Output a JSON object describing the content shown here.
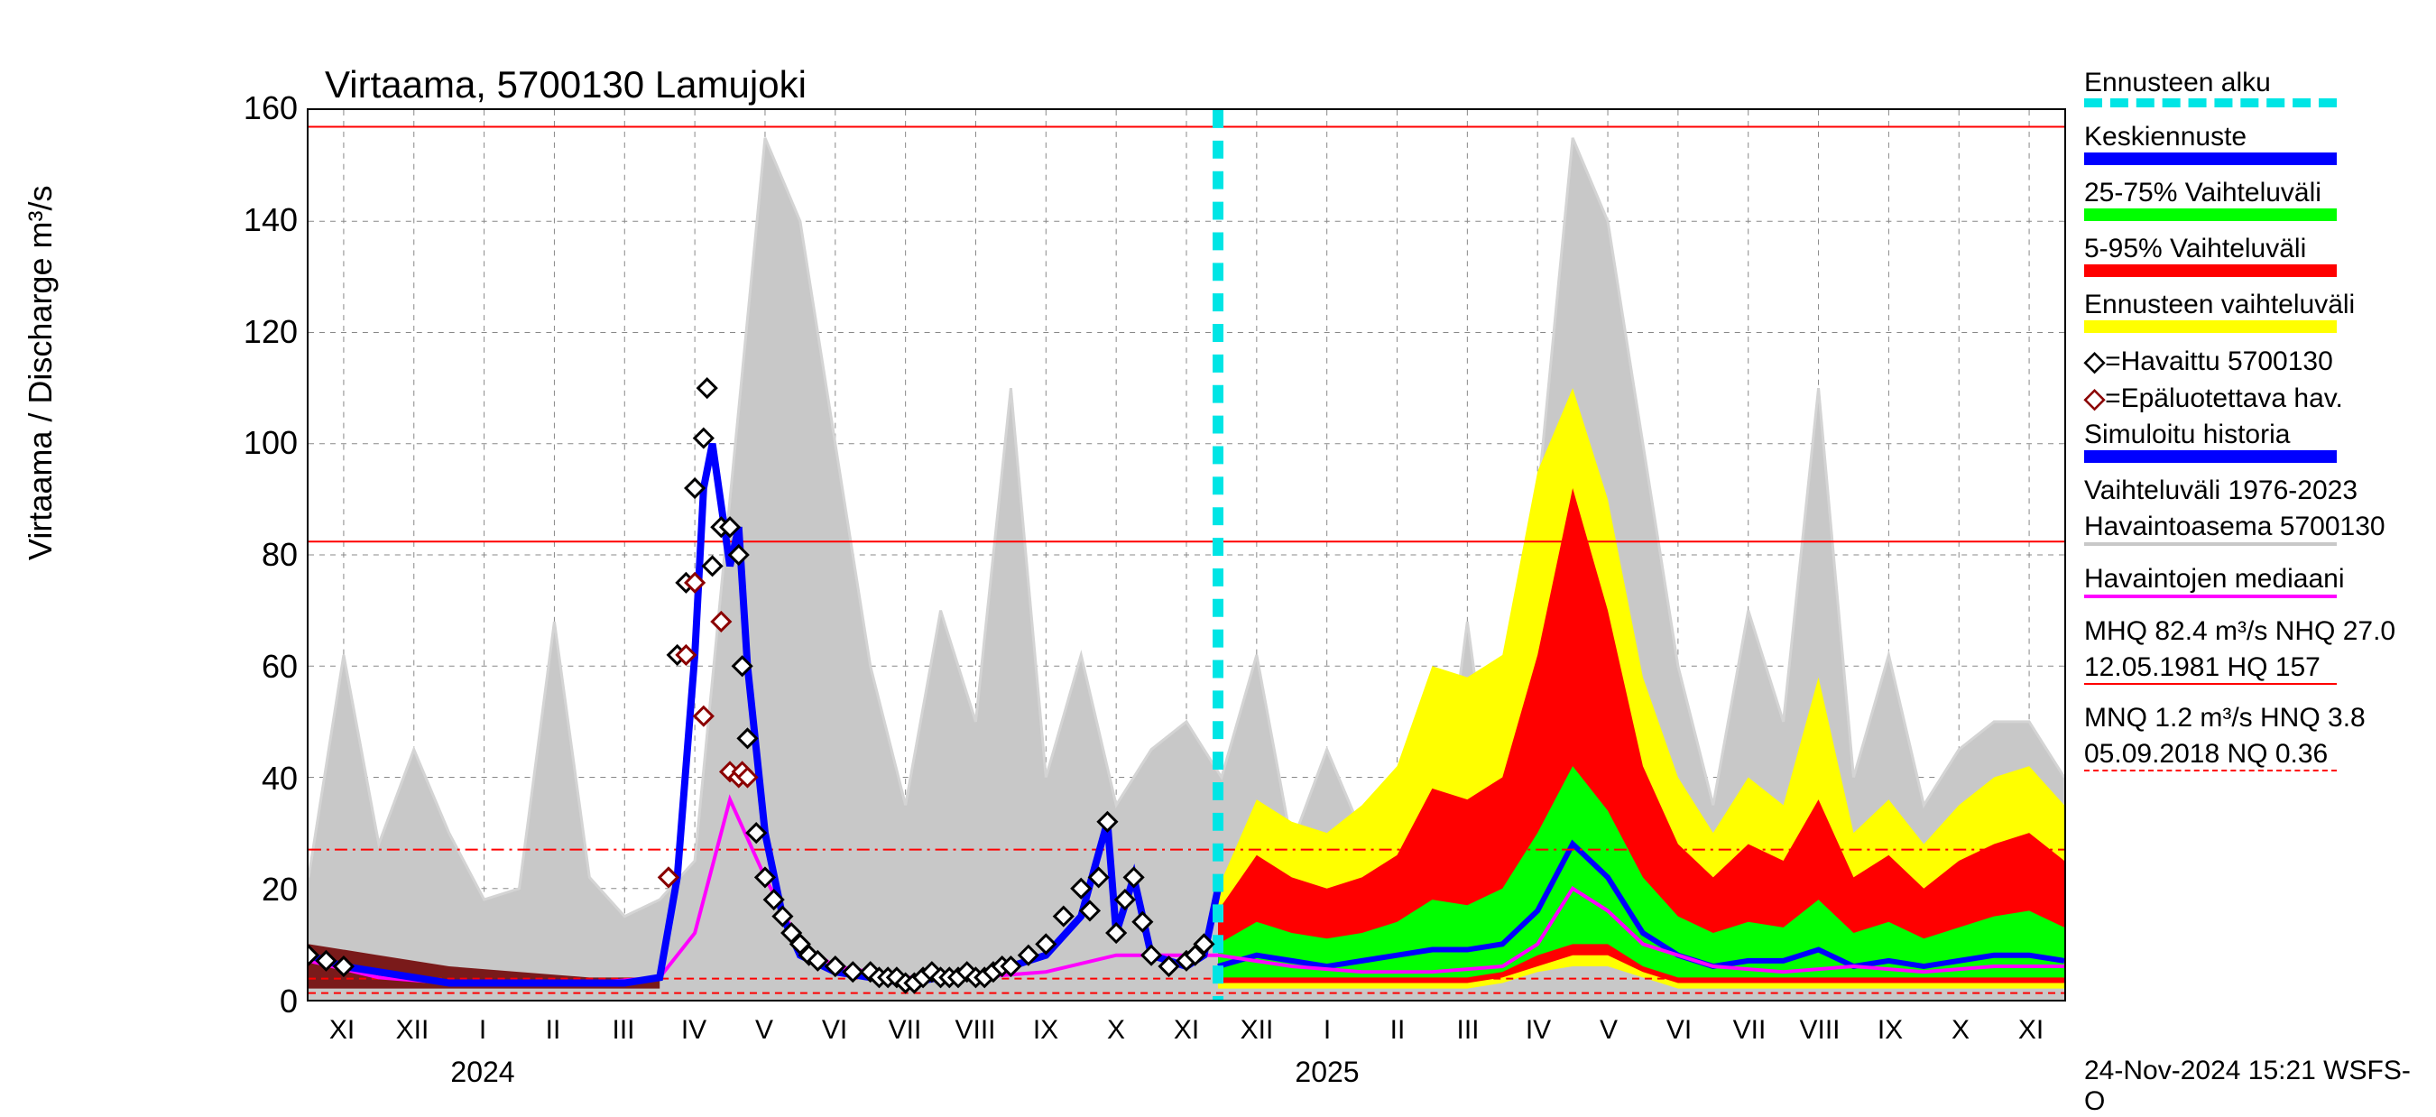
{
  "title": "Virtaama, 5700130 Lamujoki",
  "y_axis_label": "Virtaama / Discharge   m³/s",
  "footer": "24-Nov-2024 15:21 WSFS-O",
  "y_axis": {
    "min": 0,
    "max": 160,
    "ticks": [
      0,
      20,
      40,
      60,
      80,
      100,
      120,
      140,
      160
    ],
    "fontsize": 36
  },
  "x_axis": {
    "months": [
      "XI",
      "XII",
      "I",
      "II",
      "III",
      "IV",
      "V",
      "VI",
      "VII",
      "VIII",
      "IX",
      "X",
      "XI",
      "XII",
      "I",
      "II",
      "III",
      "IV",
      "V",
      "VI",
      "VII",
      "VIII",
      "IX",
      "X",
      "XI"
    ],
    "month_positions": [
      0.02,
      0.06,
      0.1,
      0.14,
      0.18,
      0.22,
      0.26,
      0.3,
      0.34,
      0.38,
      0.42,
      0.46,
      0.5,
      0.54,
      0.58,
      0.62,
      0.66,
      0.7,
      0.74,
      0.78,
      0.82,
      0.86,
      0.9,
      0.94,
      0.98
    ],
    "years": [
      "2024",
      "2025"
    ],
    "year_positions": [
      0.1,
      0.58
    ],
    "fontsize": 30
  },
  "colors": {
    "background": "#ffffff",
    "grid": "#888888",
    "axis": "#000000",
    "historical_range": "#c8c8c8",
    "yellow_band": "#ffff00",
    "red_band": "#ff0000",
    "green_band": "#00ff00",
    "blue_line": "#0000ff",
    "magenta_line": "#ff00ff",
    "cyan_dash": "#00e5e5",
    "obs_marker_fill": "#ffffff",
    "obs_marker_stroke": "#000000",
    "unrel_marker_stroke": "#8b0000",
    "ref_red": "#ff0000",
    "darkred_fill": "#7a1a1a"
  },
  "reference_lines": {
    "hq": {
      "value": 157,
      "style": "solid",
      "color": "#ff0000"
    },
    "mhq": {
      "value": 82.4,
      "style": "solid",
      "color": "#ff0000"
    },
    "nhq": {
      "value": 27.0,
      "style": "dashdot",
      "color": "#ff0000"
    },
    "hnq": {
      "value": 3.8,
      "style": "dashed",
      "color": "#ff0000"
    },
    "mnq": {
      "value": 1.2,
      "style": "dashed",
      "color": "#ff0000"
    }
  },
  "forecast_start_x": 0.518,
  "legend": {
    "items": [
      {
        "label": "Ennusteen alku",
        "type": "dashed",
        "color": "#00e5e5"
      },
      {
        "label": "Keskiennuste",
        "type": "bar",
        "color": "#0000ff"
      },
      {
        "label": "25-75% Vaihteluväli",
        "type": "bar",
        "color": "#00ff00"
      },
      {
        "label": "5-95% Vaihteluväli",
        "type": "bar",
        "color": "#ff0000"
      },
      {
        "label": "Ennusteen vaihteluväli",
        "type": "bar",
        "color": "#ffff00"
      },
      {
        "label": "◇=Havaittu 5700130",
        "type": "text",
        "marker_stroke": "#000000"
      },
      {
        "label": "◇=Epäluotettava hav.",
        "type": "text",
        "marker_stroke": "#8b0000"
      },
      {
        "label": "Simuloitu historia",
        "type": "bar",
        "color": "#0000ff"
      },
      {
        "label": "Vaihteluväli 1976-2023",
        "type": "text"
      },
      {
        "label": " Havaintoasema 5700130",
        "type": "gray_line"
      },
      {
        "label": "Havaintojen mediaani",
        "type": "line",
        "color": "#ff00ff"
      },
      {
        "label": "MHQ 82.4 m³/s NHQ 27.0",
        "type": "text"
      },
      {
        "label": "12.05.1981 HQ  157",
        "type": "ref_solid"
      },
      {
        "label": "MNQ  1.2 m³/s HNQ  3.8",
        "type": "text"
      },
      {
        "label": "05.09.2018 NQ 0.36",
        "type": "ref_dashed"
      }
    ]
  },
  "historical_range": {
    "x": [
      0,
      0.02,
      0.04,
      0.06,
      0.08,
      0.1,
      0.12,
      0.14,
      0.16,
      0.18,
      0.2,
      0.22,
      0.24,
      0.26,
      0.28,
      0.3,
      0.32,
      0.34,
      0.36,
      0.38,
      0.4,
      0.42,
      0.44,
      0.46,
      0.48,
      0.5,
      0.52,
      0.54,
      0.56,
      0.58,
      0.6,
      0.62,
      0.64,
      0.66,
      0.68,
      0.7,
      0.72,
      0.74,
      0.76,
      0.78,
      0.8,
      0.82,
      0.84,
      0.86,
      0.88,
      0.9,
      0.92,
      0.94,
      0.96,
      0.98,
      1.0
    ],
    "upper": [
      22,
      62,
      28,
      45,
      30,
      18,
      20,
      68,
      22,
      15,
      18,
      25,
      90,
      155,
      140,
      100,
      60,
      35,
      70,
      50,
      110,
      40,
      62,
      35,
      45,
      50,
      40,
      62,
      28,
      45,
      30,
      18,
      20,
      68,
      22,
      90,
      155,
      140,
      100,
      60,
      35,
      70,
      50,
      110,
      40,
      62,
      35,
      45,
      50,
      50,
      40
    ],
    "lower": [
      0,
      0,
      0,
      0,
      0,
      0,
      0,
      0,
      0,
      0,
      0,
      0,
      0,
      0,
      0,
      0,
      0,
      0,
      0,
      0,
      0,
      0,
      0,
      0,
      0,
      0,
      0,
      0,
      0,
      0,
      0,
      0,
      0,
      0,
      0,
      0,
      0,
      0,
      0,
      0,
      0,
      0,
      0,
      0,
      0,
      0,
      0,
      0,
      0,
      0,
      0
    ]
  },
  "forecast_bands": {
    "x": [
      0.518,
      0.54,
      0.56,
      0.58,
      0.6,
      0.62,
      0.64,
      0.66,
      0.68,
      0.7,
      0.72,
      0.74,
      0.76,
      0.78,
      0.8,
      0.82,
      0.84,
      0.86,
      0.88,
      0.9,
      0.92,
      0.94,
      0.96,
      0.98,
      1.0
    ],
    "yellow_upper": [
      20,
      36,
      32,
      30,
      35,
      42,
      60,
      58,
      62,
      95,
      110,
      90,
      58,
      40,
      30,
      40,
      35,
      58,
      30,
      36,
      28,
      35,
      40,
      42,
      35
    ],
    "yellow_lower": [
      2,
      2,
      2,
      2,
      2,
      2,
      2,
      2,
      3,
      5,
      6,
      6,
      4,
      2,
      2,
      2,
      2,
      2,
      2,
      2,
      2,
      2,
      2,
      2,
      2
    ],
    "red_upper": [
      16,
      26,
      22,
      20,
      22,
      26,
      38,
      36,
      40,
      62,
      92,
      70,
      42,
      28,
      22,
      28,
      25,
      36,
      22,
      26,
      20,
      25,
      28,
      30,
      25
    ],
    "red_lower": [
      3,
      3,
      3,
      3,
      3,
      3,
      3,
      3,
      4,
      6,
      8,
      8,
      5,
      3,
      3,
      3,
      3,
      3,
      3,
      3,
      3,
      3,
      3,
      3,
      3
    ],
    "green_upper": [
      10,
      14,
      12,
      11,
      12,
      14,
      18,
      17,
      20,
      30,
      42,
      34,
      22,
      15,
      12,
      14,
      13,
      18,
      12,
      14,
      11,
      13,
      15,
      16,
      13
    ],
    "green_lower": [
      4,
      4,
      4,
      4,
      4,
      4,
      4,
      4,
      5,
      8,
      10,
      10,
      6,
      4,
      4,
      4,
      4,
      4,
      4,
      4,
      4,
      4,
      4,
      4,
      4
    ],
    "blue": [
      6,
      8,
      7,
      6,
      7,
      8,
      9,
      9,
      10,
      16,
      28,
      22,
      12,
      8,
      6,
      7,
      7,
      9,
      6,
      7,
      6,
      7,
      8,
      8,
      7
    ]
  },
  "median_line": {
    "x": [
      0,
      0.04,
      0.08,
      0.12,
      0.16,
      0.2,
      0.22,
      0.24,
      0.26,
      0.28,
      0.3,
      0.34,
      0.38,
      0.42,
      0.46,
      0.5,
      0.518,
      0.56,
      0.6,
      0.64,
      0.68,
      0.7,
      0.72,
      0.74,
      0.76,
      0.8,
      0.84,
      0.88,
      0.92,
      0.96,
      1.0
    ],
    "y": [
      7,
      4,
      3,
      3,
      3,
      4,
      12,
      36,
      22,
      10,
      6,
      4,
      4,
      5,
      8,
      8,
      8,
      6,
      5,
      5,
      6,
      10,
      20,
      16,
      10,
      6,
      5,
      6,
      5,
      6,
      6
    ]
  },
  "simulated_history": {
    "x": [
      0,
      0.02,
      0.04,
      0.06,
      0.08,
      0.1,
      0.12,
      0.14,
      0.16,
      0.18,
      0.2,
      0.21,
      0.22,
      0.225,
      0.23,
      0.24,
      0.245,
      0.25,
      0.26,
      0.27,
      0.28,
      0.3,
      0.32,
      0.34,
      0.36,
      0.38,
      0.4,
      0.42,
      0.44,
      0.455,
      0.46,
      0.47,
      0.48,
      0.5,
      0.51,
      0.518
    ],
    "y": [
      8,
      6,
      5,
      4,
      3,
      3,
      3,
      3,
      3,
      3,
      4,
      22,
      62,
      92,
      100,
      78,
      85,
      60,
      30,
      15,
      8,
      5,
      4,
      3,
      4,
      4,
      6,
      8,
      15,
      32,
      12,
      22,
      8,
      6,
      8,
      20
    ]
  },
  "darkred_history": {
    "x": [
      0,
      0.04,
      0.08,
      0.12,
      0.16,
      0.2
    ],
    "upper": [
      10,
      8,
      6,
      5,
      4,
      4
    ],
    "lower": [
      2,
      2,
      2,
      2,
      2,
      2
    ]
  },
  "observations": {
    "x": [
      0,
      0.01,
      0.02,
      0.205,
      0.21,
      0.215,
      0.22,
      0.225,
      0.227,
      0.23,
      0.235,
      0.24,
      0.245,
      0.247,
      0.25,
      0.255,
      0.26,
      0.265,
      0.27,
      0.275,
      0.28,
      0.285,
      0.29,
      0.3,
      0.31,
      0.32,
      0.325,
      0.33,
      0.335,
      0.34,
      0.345,
      0.35,
      0.355,
      0.36,
      0.365,
      0.37,
      0.375,
      0.38,
      0.385,
      0.39,
      0.395,
      0.4,
      0.41,
      0.42,
      0.43,
      0.44,
      0.445,
      0.45,
      0.455,
      0.46,
      0.465,
      0.47,
      0.475,
      0.48,
      0.49,
      0.5,
      0.505,
      0.51
    ],
    "y": [
      8,
      7,
      6,
      22,
      62,
      75,
      92,
      101,
      110,
      78,
      85,
      85,
      80,
      60,
      47,
      30,
      22,
      18,
      15,
      12,
      10,
      8,
      7,
      6,
      5,
      5,
      4,
      4,
      4,
      3,
      3,
      4,
      5,
      4,
      4,
      4,
      5,
      4,
      4,
      5,
      6,
      6,
      8,
      10,
      15,
      20,
      16,
      22,
      32,
      12,
      18,
      22,
      14,
      8,
      6,
      7,
      8,
      10
    ]
  },
  "observations_unreliable": {
    "x": [
      0.205,
      0.215,
      0.22,
      0.225,
      0.235,
      0.24,
      0.245,
      0.247,
      0.25
    ],
    "y": [
      22,
      62,
      75,
      51,
      68,
      41,
      40,
      41,
      40
    ]
  }
}
